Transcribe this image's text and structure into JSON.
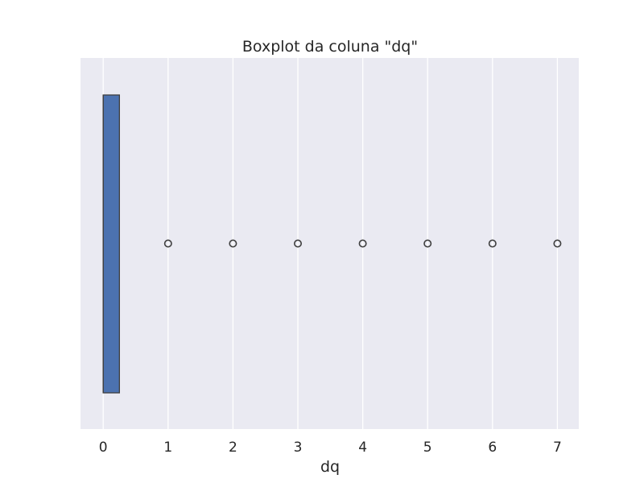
{
  "chart_data": {
    "type": "boxplot",
    "title": "Boxplot da coluna \"dq\"",
    "xlabel": "dq",
    "ylabel": "",
    "orientation": "horizontal",
    "xlim": [
      -0.35,
      7.33
    ],
    "x_ticks": [
      0,
      1,
      2,
      3,
      4,
      5,
      6,
      7
    ],
    "grid": true,
    "box": {
      "q1": 0,
      "median": 0,
      "q3": 0.25,
      "whisker_low": 0,
      "whisker_high": 0.25
    },
    "outliers": [
      1,
      2,
      3,
      4,
      5,
      6,
      7
    ],
    "colors": {
      "background": "#eaeaf2",
      "grid": "#ffffff",
      "box_fill": "#4c72b0",
      "box_edge": "#3f3f3f",
      "text": "#262626"
    }
  }
}
